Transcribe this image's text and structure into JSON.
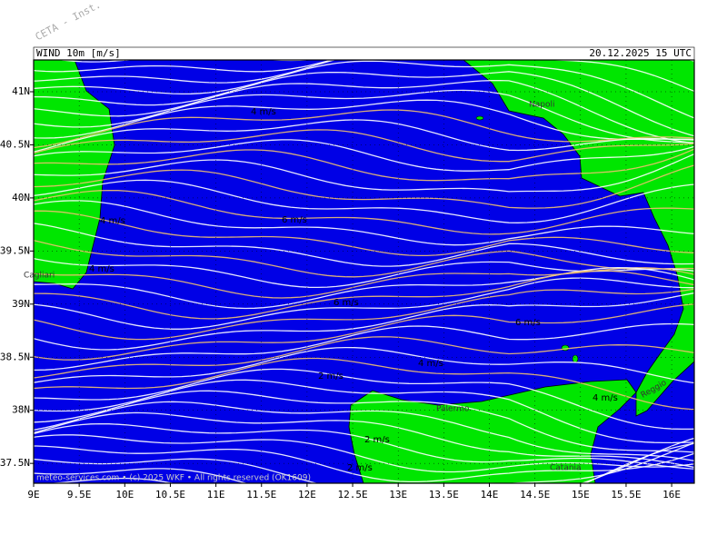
{
  "watermark": "CETA - Inst.",
  "header": {
    "left": "WIND 10m [m/s]",
    "right": "20.12.2025 15 UTC"
  },
  "lat_ticks": [
    {
      "value": 41,
      "label": "41N"
    },
    {
      "value": 40.5,
      "label": "40.5N"
    },
    {
      "value": 40,
      "label": "40N"
    },
    {
      "value": 39.5,
      "label": "39.5N"
    },
    {
      "value": 39,
      "label": "39N"
    },
    {
      "value": 38.5,
      "label": "38.5N"
    },
    {
      "value": 38,
      "label": "38N"
    },
    {
      "value": 37.5,
      "label": "37.5N"
    }
  ],
  "lon_ticks": [
    {
      "value": 9,
      "label": "9E"
    },
    {
      "value": 9.5,
      "label": "9.5E"
    },
    {
      "value": 10,
      "label": "10E"
    },
    {
      "value": 10.5,
      "label": "10.5E"
    },
    {
      "value": 11,
      "label": "11E"
    },
    {
      "value": 11.5,
      "label": "11.5E"
    },
    {
      "value": 12,
      "label": "12E"
    },
    {
      "value": 12.5,
      "label": "12.5E"
    },
    {
      "value": 13,
      "label": "13E"
    },
    {
      "value": 13.5,
      "label": "13.5E"
    },
    {
      "value": 14,
      "label": "14E"
    },
    {
      "value": 14.5,
      "label": "14.5E"
    },
    {
      "value": 15,
      "label": "15E"
    },
    {
      "value": 15.5,
      "label": "15.5E"
    },
    {
      "value": 16,
      "label": "16E"
    }
  ],
  "places": [
    "Napoli",
    "Cagliari",
    "Palermo",
    "Catania",
    "Reggio"
  ],
  "speed_labels": [
    "4 m/s",
    "4 m/s",
    "6 m/s",
    "4 m/s",
    "6 m/s",
    "6 m/s",
    "4 m/s",
    "2 m/s",
    "4 m/s",
    "2 m/s",
    "2 m/s"
  ],
  "copyright": "meteo-services.com • (c) 2025 WKF • All rights reserved (OK1609)"
}
